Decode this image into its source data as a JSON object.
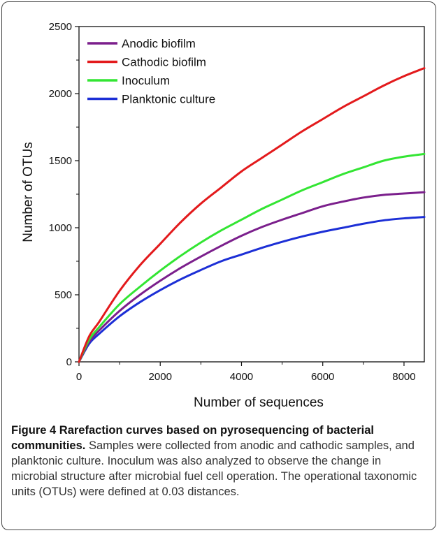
{
  "chart_data": {
    "type": "line",
    "title": "",
    "xlabel": "Number of sequences",
    "ylabel": "Number of OTUs",
    "xlim": [
      0,
      8500
    ],
    "ylim": [
      0,
      2500
    ],
    "x_ticks": [
      0,
      2000,
      4000,
      6000,
      8000
    ],
    "y_ticks": [
      0,
      500,
      1000,
      1500,
      2000,
      2500
    ],
    "legend_position": "top-left",
    "grid": false,
    "x": [
      0,
      250,
      500,
      1000,
      1500,
      2000,
      2500,
      3000,
      3500,
      4000,
      4500,
      5000,
      5500,
      6000,
      6500,
      7000,
      7500,
      8000,
      8500
    ],
    "series": [
      {
        "name": "Anodic biofilm",
        "color": "#7b1f8c",
        "values": [
          0,
          150,
          235,
          380,
          500,
          605,
          700,
          785,
          865,
          940,
          1005,
          1060,
          1110,
          1160,
          1195,
          1225,
          1245,
          1255,
          1265
        ]
      },
      {
        "name": "Cathodic biofilm",
        "color": "#e31a1c",
        "values": [
          0,
          190,
          300,
          530,
          720,
          880,
          1040,
          1180,
          1300,
          1420,
          1520,
          1620,
          1720,
          1810,
          1900,
          1980,
          2060,
          2130,
          2190
        ]
      },
      {
        "name": "Inoculum",
        "color": "#33e533",
        "values": [
          0,
          165,
          260,
          430,
          560,
          680,
          790,
          890,
          980,
          1060,
          1140,
          1210,
          1280,
          1340,
          1400,
          1450,
          1500,
          1530,
          1550
        ]
      },
      {
        "name": "Planktonic culture",
        "color": "#1c2fd6",
        "values": [
          0,
          135,
          210,
          340,
          445,
          535,
          615,
          685,
          750,
          800,
          850,
          895,
          935,
          970,
          1000,
          1030,
          1055,
          1070,
          1080
        ]
      }
    ]
  },
  "caption": {
    "label": "Figure 4",
    "title": "Rarefaction curves based on pyrosequencing of bacterial communities.",
    "text": "Samples were collected from anodic and cathodic samples, and planktonic culture. Inoculum was also analyzed to observe the change in microbial structure after microbial fuel cell operation. The operational taxonomic units (OTUs) were defined at 0.03 distances."
  }
}
